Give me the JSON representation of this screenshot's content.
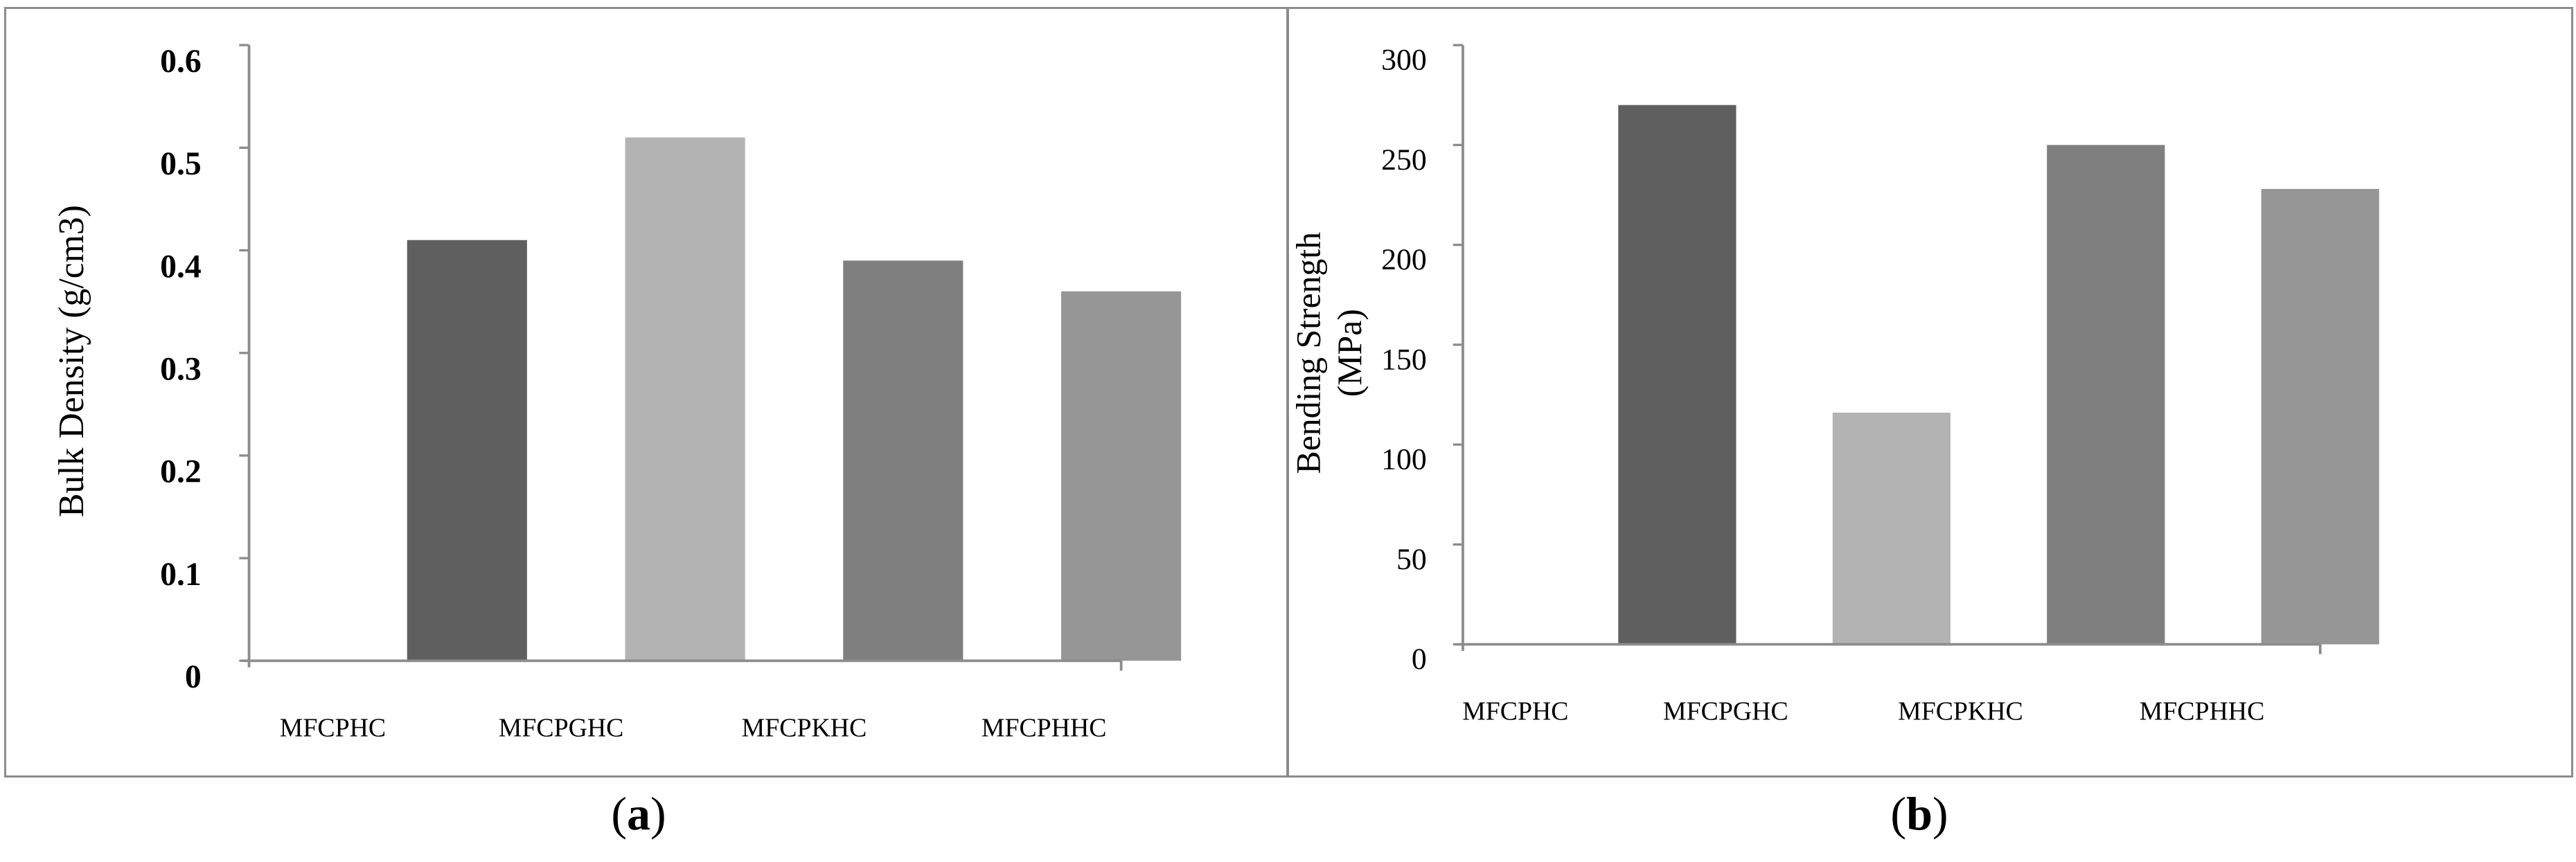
{
  "chart_data": [
    {
      "type": "bar",
      "panel": "a",
      "categories": [
        "MFCPHC",
        "MFCPGHC",
        "MFCPKHC",
        "MFCPHHC"
      ],
      "bars": [
        {
          "name": "",
          "x_center": 1.5,
          "value": 0.41,
          "color": "#5f5f5f"
        },
        {
          "name": "",
          "x_center": 2.5,
          "value": 0.51,
          "color": "#b3b3b3"
        },
        {
          "name": "",
          "x_center": 3.5,
          "value": 0.39,
          "color": "#7f7f7f"
        },
        {
          "name": "",
          "x_center": 4.5,
          "value": 0.36,
          "color": "#969696"
        }
      ],
      "ylabel": "Bulk Density (g/cm3)",
      "xlabel": "",
      "ylim": [
        0,
        0.6
      ],
      "yticks": [
        "0",
        "0.1",
        "0.2",
        "0.3",
        "0.4",
        "0.5",
        "0.6"
      ],
      "grid": false,
      "legend": "none",
      "caption_letter": "a"
    },
    {
      "type": "bar",
      "panel": "b",
      "categories": [
        "MFCPHC",
        "MFCPGHC",
        "MFCPKHC",
        "MFCPHHC"
      ],
      "bars": [
        {
          "name": "",
          "x_center": 1.5,
          "value": 270,
          "color": "#5f5f5f"
        },
        {
          "name": "",
          "x_center": 2.5,
          "value": 116,
          "color": "#b3b3b3"
        },
        {
          "name": "",
          "x_center": 3.5,
          "value": 250,
          "color": "#7f7f7f"
        },
        {
          "name": "",
          "x_center": 4.5,
          "value": 228,
          "color": "#969696"
        }
      ],
      "ylabel_lines": [
        "Bending Strength",
        "(MPa)"
      ],
      "xlabel": "",
      "ylim": [
        0,
        300
      ],
      "yticks": [
        "0",
        "50",
        "100",
        "150",
        "200",
        "250",
        "300"
      ],
      "grid": false,
      "legend": "none",
      "caption_letter": "b"
    }
  ],
  "colors": {
    "axis": "#8c8c8c",
    "panel_border": "#8c8c8c"
  }
}
